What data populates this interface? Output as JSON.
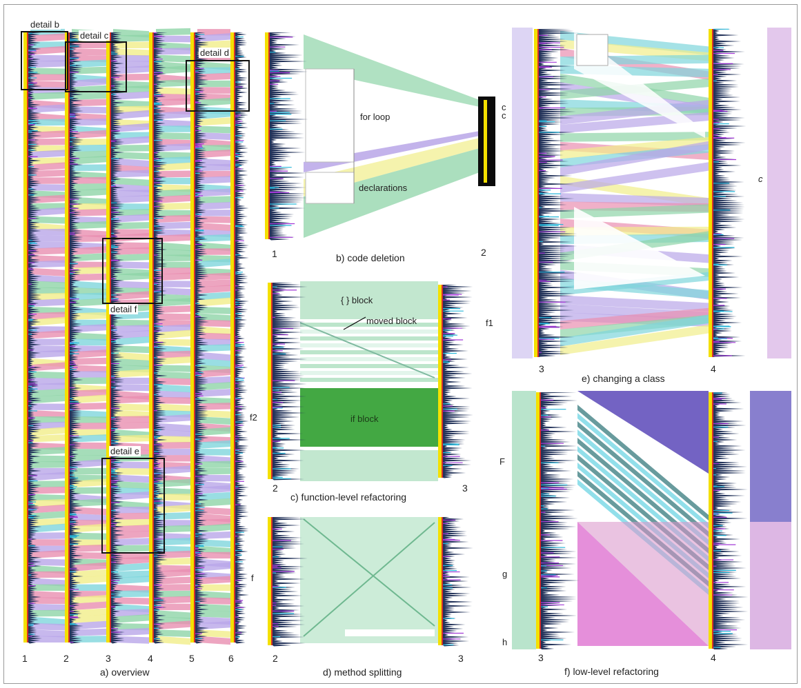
{
  "overview": {
    "caption": "a) overview",
    "column_labels": [
      "1",
      "2",
      "3",
      "4",
      "5",
      "6"
    ],
    "detail_labels": {
      "b": "detail b",
      "c": "detail c",
      "d": "detail d",
      "e": "detail e",
      "f": "detail f"
    }
  },
  "panel_b": {
    "caption": "b) code deletion",
    "left_label": "1",
    "right_label": "2",
    "annotations": [
      "for loop",
      "declarations"
    ],
    "side_label": "c"
  },
  "panel_c": {
    "caption": "c) function-level refactoring",
    "left_label": "2",
    "right_label": "3",
    "annotations": [
      "{ } block",
      "moved block",
      "if block"
    ],
    "side_labels": [
      "f1",
      "f2"
    ]
  },
  "panel_d": {
    "caption": "d) method splitting",
    "left_label": "2",
    "right_label": "3",
    "side_labels": [
      "f",
      "g",
      "h"
    ]
  },
  "panel_e": {
    "caption": "e) changing a class",
    "left_label": "3",
    "right_label": "4",
    "side_labels": [
      "c",
      "c"
    ]
  },
  "panel_f": {
    "caption": "f) low-level refactoring",
    "left_label": "3",
    "right_label": "4",
    "side_label": "F"
  },
  "colors": {
    "green": "#8fd4a8",
    "pink": "#e98fb0",
    "yellow": "#f1ee8a",
    "lavender": "#b9a6e8",
    "cyan": "#7fd6dc",
    "dark": "#101020",
    "strip_yellow": "#f4e000",
    "strip_red": "#d8332a"
  }
}
